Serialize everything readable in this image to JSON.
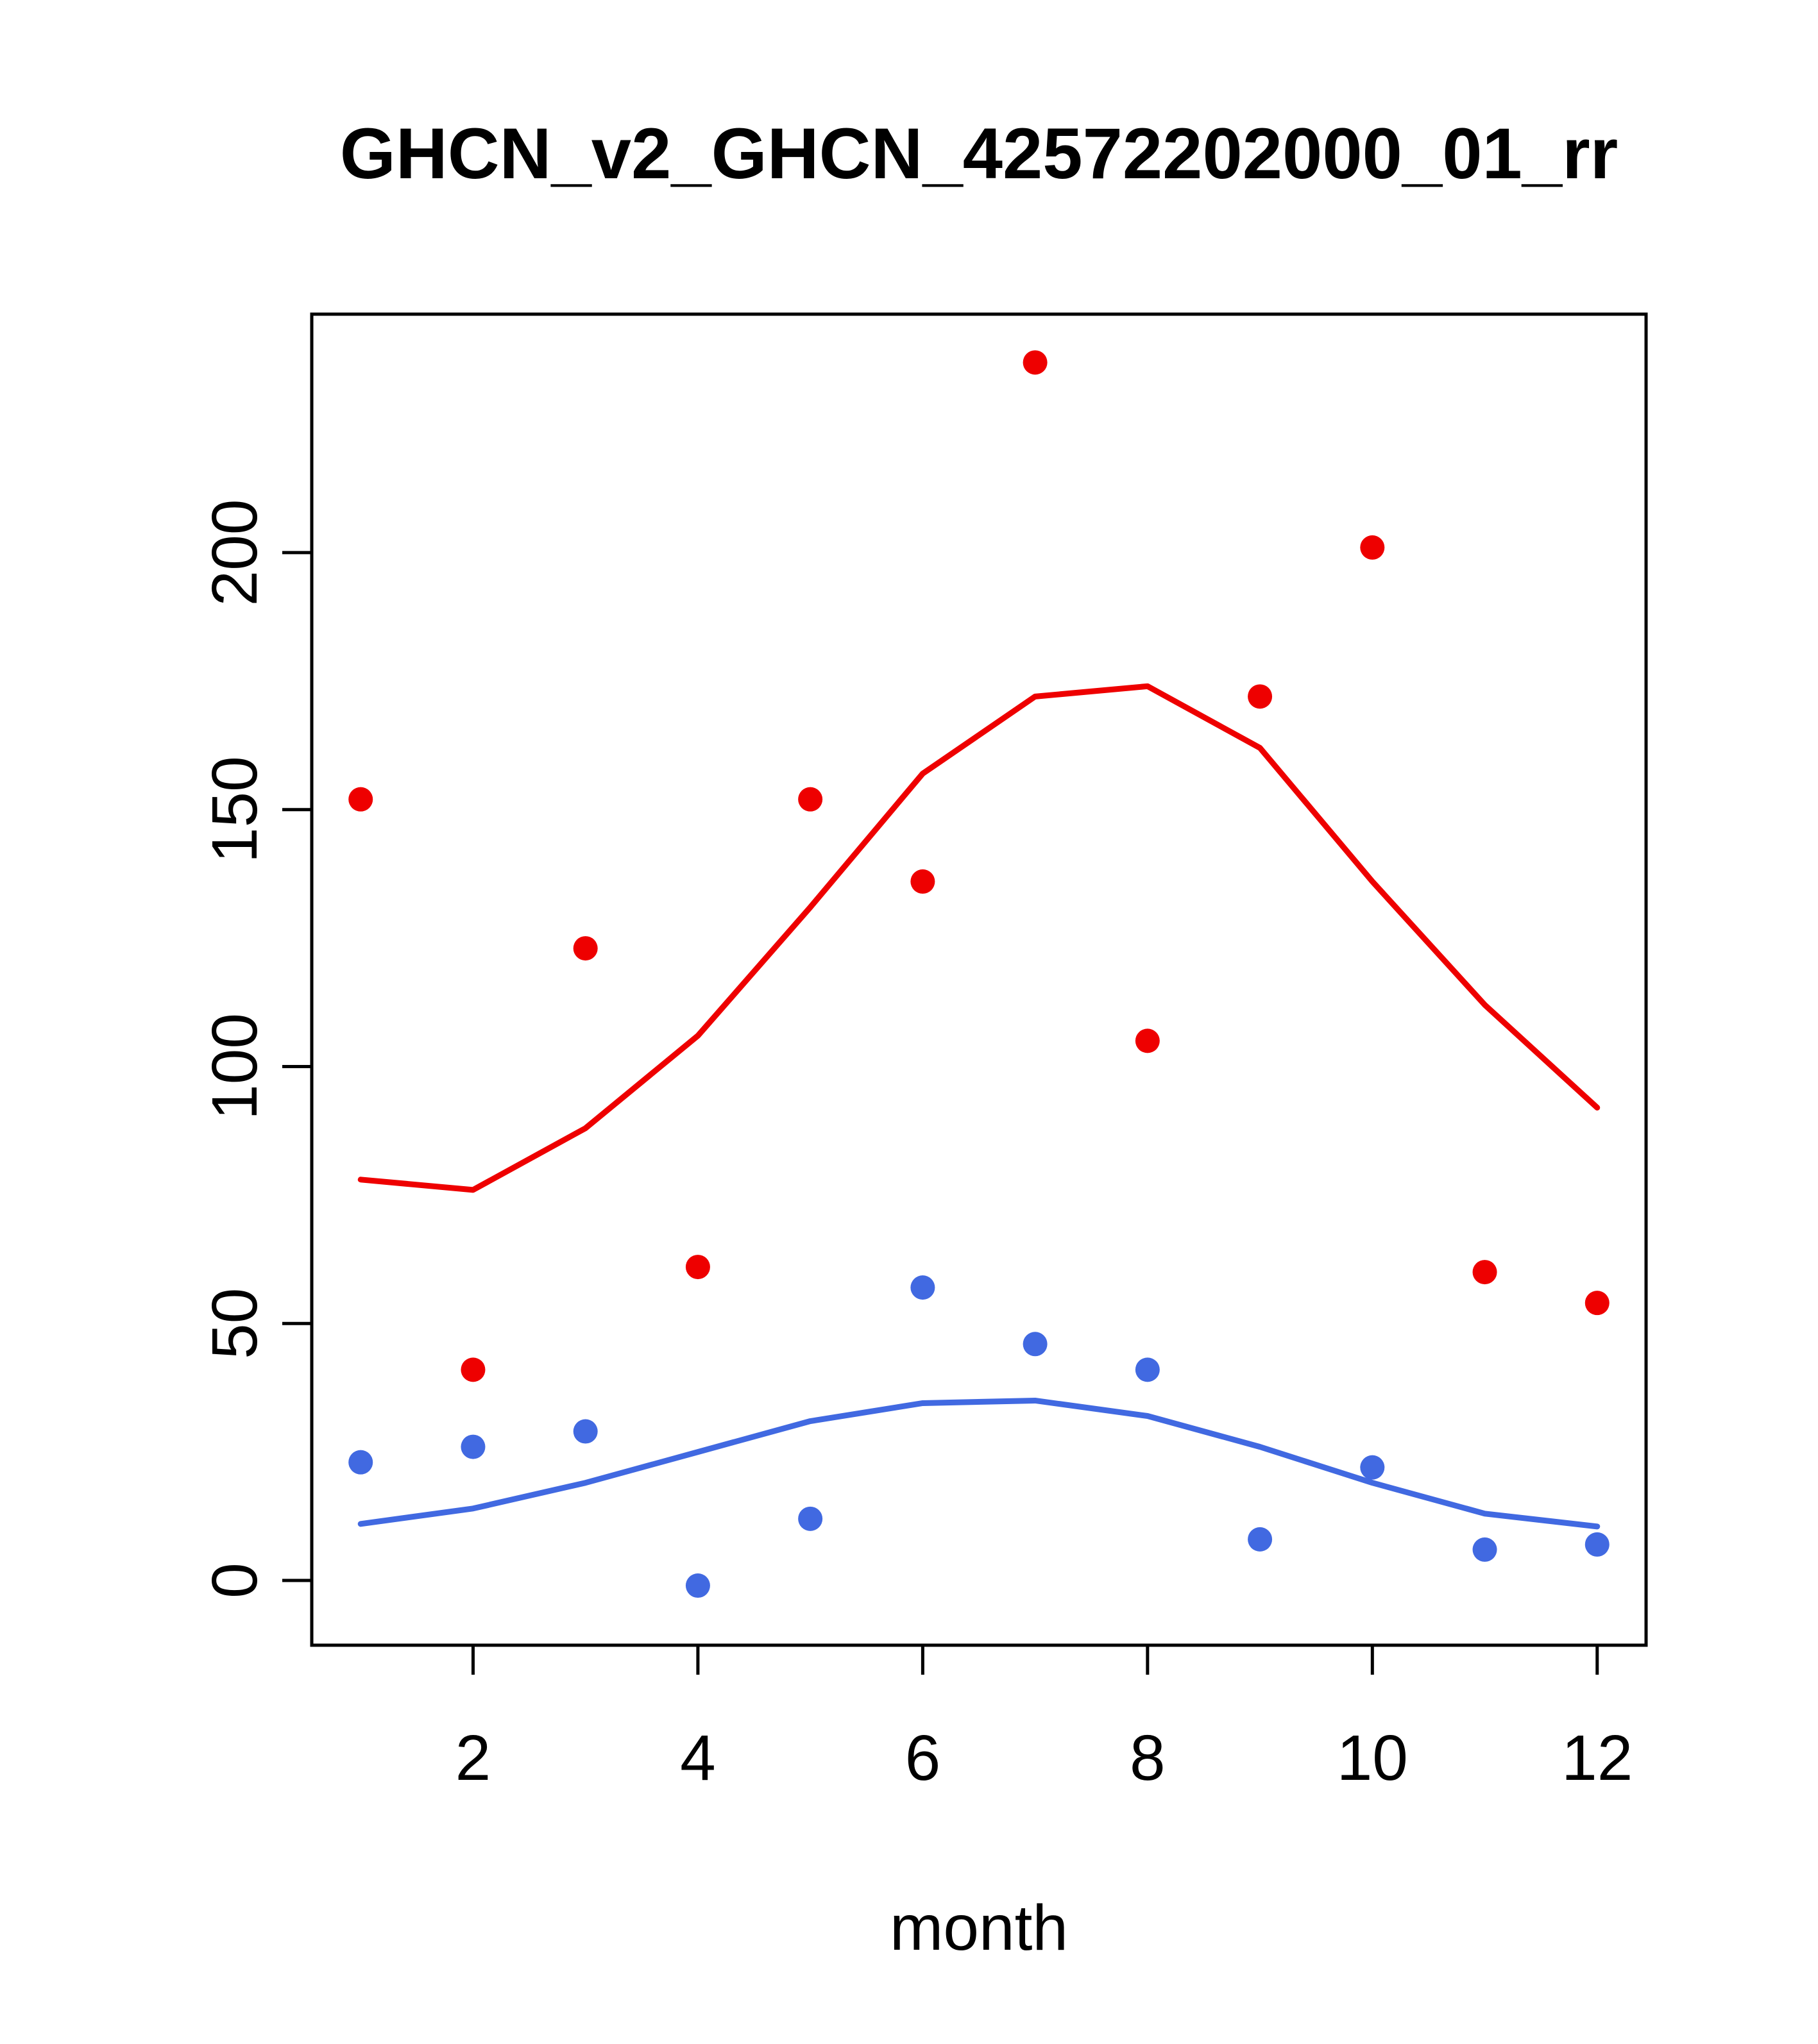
{
  "page": {
    "background": "#ffffff"
  },
  "chart_data": {
    "type": "scatter",
    "title": "GHCN_v2_GHCN_42572202000_01_rr",
    "xlabel": "month",
    "ylabel": "",
    "grid": false,
    "legend": "none",
    "x": [
      1,
      2,
      3,
      4,
      5,
      6,
      7,
      8,
      9,
      10,
      11,
      12
    ],
    "xlim": [
      0.565,
      12.435
    ],
    "ylim": [
      -12.6,
      246.4
    ],
    "xticks": [
      2,
      4,
      6,
      8,
      10,
      12
    ],
    "yticks": [
      0,
      50,
      100,
      150,
      200
    ],
    "axis_color": "#000000",
    "series": [
      {
        "name": "red-line-smooth",
        "type": "line",
        "color": "#ee0000",
        "values": [
          78,
          76,
          88,
          106,
          131,
          157,
          172,
          174,
          162,
          136,
          112,
          92
        ]
      },
      {
        "name": "blue-line-smooth",
        "type": "line",
        "color": "#4169e1",
        "values": [
          11,
          14,
          19,
          25,
          31,
          34.5,
          35,
          32,
          26,
          19,
          13,
          10.5
        ]
      },
      {
        "name": "red-points",
        "type": "points",
        "color": "#ee0000",
        "values": [
          152,
          41,
          123,
          61,
          152,
          136,
          237,
          105,
          172,
          201,
          60,
          54
        ]
      },
      {
        "name": "blue-points",
        "type": "points",
        "color": "#4169e1",
        "values": [
          23,
          26,
          29,
          -1,
          12,
          57,
          46,
          41,
          8,
          22,
          6,
          7
        ]
      }
    ]
  }
}
